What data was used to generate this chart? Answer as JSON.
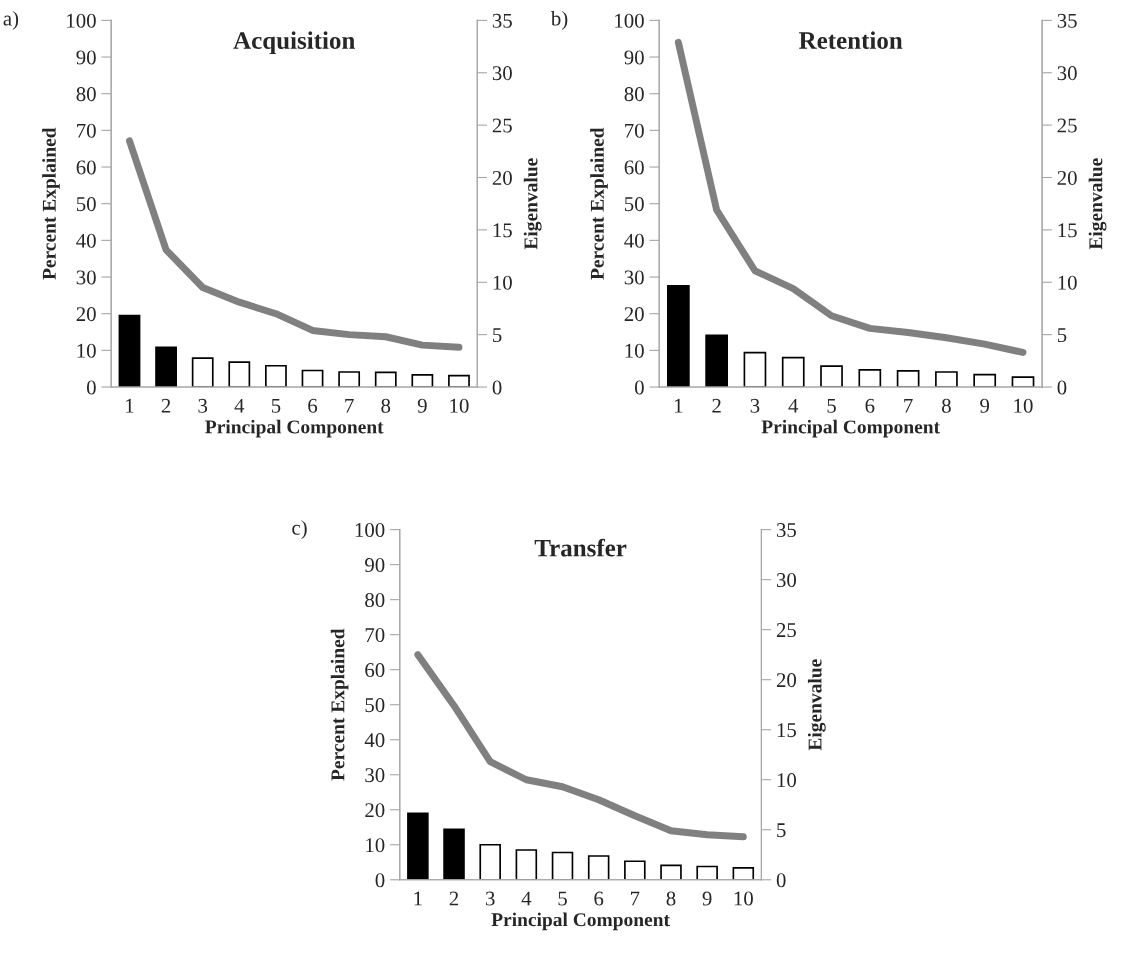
{
  "chart_data": [
    {
      "type": "bar",
      "title": "Acquisition",
      "xlabel": "Principal Component",
      "ylabel": "Percent Explained",
      "y2label": "Eigenvalue",
      "annotations": [
        "a)"
      ],
      "categories": [
        "1",
        "2",
        "3",
        "4",
        "5",
        "6",
        "7",
        "8",
        "9",
        "10"
      ],
      "series": [
        {
          "values": [
            19.5,
            10.8,
            7.9,
            6.8,
            5.8,
            4.5,
            4.1,
            4.0,
            3.3,
            3.1
          ],
          "colors": [
            "#000000",
            "#000000",
            "#ffffff",
            "#ffffff",
            "#ffffff",
            "#ffffff",
            "#ffffff",
            "#ffffff",
            "#ffffff",
            "#ffffff"
          ]
        },
        {
          "type": "line",
          "axis": "y2",
          "color": "#808080",
          "values": [
            23.5,
            13.1,
            9.5,
            8.1,
            7.0,
            5.4,
            5.0,
            4.8,
            4.0,
            3.8
          ]
        }
      ],
      "ylim": [
        0,
        100
      ],
      "yticks": [
        0,
        10,
        20,
        30,
        40,
        50,
        60,
        70,
        80,
        90,
        100
      ],
      "y2lim": [
        0,
        35
      ],
      "y2ticks": [
        0,
        5,
        10,
        15,
        20,
        25,
        30,
        35
      ],
      "grid": false,
      "legend": false
    },
    {
      "type": "bar",
      "title": "Retention",
      "xlabel": "Principal Component",
      "ylabel": "Percent Explained",
      "y2label": "Eigenvalue",
      "annotations": [
        "b)"
      ],
      "categories": [
        "1",
        "2",
        "3",
        "4",
        "5",
        "6",
        "7",
        "8",
        "9",
        "10"
      ],
      "series": [
        {
          "values": [
            27.6,
            14.1,
            9.4,
            8.0,
            5.7,
            4.7,
            4.4,
            4.1,
            3.4,
            2.7
          ],
          "colors": [
            "#000000",
            "#000000",
            "#ffffff",
            "#ffffff",
            "#ffffff",
            "#ffffff",
            "#ffffff",
            "#ffffff",
            "#ffffff",
            "#ffffff"
          ]
        },
        {
          "type": "line",
          "axis": "y2",
          "color": "#808080",
          "values": [
            32.9,
            16.9,
            11.1,
            9.4,
            6.8,
            5.6,
            5.2,
            4.7,
            4.1,
            3.3
          ]
        }
      ],
      "ylim": [
        0,
        100
      ],
      "yticks": [
        0,
        10,
        20,
        30,
        40,
        50,
        60,
        70,
        80,
        90,
        100
      ],
      "y2lim": [
        0,
        35
      ],
      "y2ticks": [
        0,
        5,
        10,
        15,
        20,
        25,
        30,
        35
      ],
      "grid": false,
      "legend": false
    },
    {
      "type": "bar",
      "title": "Transfer",
      "xlabel": "Principal Component",
      "ylabel": "Percent Explained",
      "y2label": "Eigenvalue",
      "annotations": [
        "c)"
      ],
      "categories": [
        "1",
        "2",
        "3",
        "4",
        "5",
        "6",
        "7",
        "8",
        "9",
        "10"
      ],
      "series": [
        {
          "values": [
            19.0,
            14.4,
            10.0,
            8.5,
            7.8,
            6.8,
            5.3,
            4.1,
            3.8,
            3.4
          ],
          "colors": [
            "#000000",
            "#000000",
            "#ffffff",
            "#ffffff",
            "#ffffff",
            "#ffffff",
            "#ffffff",
            "#ffffff",
            "#ffffff",
            "#ffffff"
          ]
        },
        {
          "type": "line",
          "axis": "y2",
          "color": "#808080",
          "values": [
            22.5,
            17.4,
            11.8,
            10.0,
            9.3,
            8.0,
            6.4,
            4.9,
            4.5,
            4.3
          ]
        }
      ],
      "ylim": [
        0,
        100
      ],
      "yticks": [
        0,
        10,
        20,
        30,
        40,
        50,
        60,
        70,
        80,
        90,
        100
      ],
      "y2lim": [
        0,
        35
      ],
      "y2ticks": [
        0,
        5,
        10,
        15,
        20,
        25,
        30,
        35
      ],
      "grid": false,
      "legend": false
    }
  ]
}
